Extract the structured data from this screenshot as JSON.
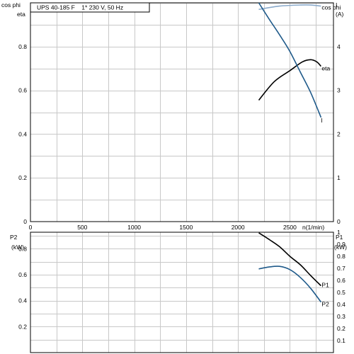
{
  "chart_data": [
    {
      "type": "line",
      "title": "UPS 40-185 F    1* 230 V, 50 Hz",
      "xlabel": "n(1/min)",
      "ylabel_left": [
        "cos phi",
        "eta"
      ],
      "ylabel_right": [
        "I",
        "(A)"
      ],
      "xlim": [
        0,
        2920
      ],
      "ylim_left": [
        0,
        1.0
      ],
      "ylim_right": [
        0,
        5.0
      ],
      "x_ticks": [
        "0",
        "500",
        "1000",
        "1500",
        "2000",
        "2500"
      ],
      "y_ticks_left": [
        "0",
        "0.2",
        "0.4",
        "0.6",
        "0.8"
      ],
      "y_ticks_right": [
        "0",
        "1",
        "2",
        "3",
        "4"
      ],
      "grid": true,
      "series": [
        {
          "name": "cos phi",
          "axis": "left",
          "color": "#8aaacb",
          "x": [
            2200,
            2400,
            2600,
            2700,
            2800
          ],
          "y": [
            0.97,
            0.985,
            0.99,
            0.99,
            0.985
          ]
        },
        {
          "name": "eta",
          "axis": "left",
          "color": "#000000",
          "x": [
            2200,
            2350,
            2500,
            2620,
            2700,
            2760,
            2800
          ],
          "y": [
            0.555,
            0.64,
            0.69,
            0.73,
            0.74,
            0.73,
            0.71
          ]
        },
        {
          "name": "I",
          "axis": "right",
          "color": "#1f5a8a",
          "x": [
            2200,
            2300,
            2400,
            2500,
            2600,
            2700,
            2800
          ],
          "y": [
            5.0,
            4.63,
            4.27,
            3.89,
            3.42,
            2.95,
            2.38
          ]
        }
      ]
    },
    {
      "type": "line",
      "ylabel_left": [
        "P2",
        "(kW)"
      ],
      "ylabel_right": [
        "P1",
        "(kW)"
      ],
      "xlim": [
        0,
        2920
      ],
      "ylim_left": [
        0,
        0.928
      ],
      "ylim_right": [
        0,
        1.0
      ],
      "y_ticks_left": [
        "0.2",
        "0.4",
        "0.6",
        "0.8"
      ],
      "y_ticks_right": [
        "0.1",
        "0.2",
        "0.3",
        "0.4",
        "0.5",
        "0.6",
        "0.7",
        "0.8",
        "0.9",
        "1"
      ],
      "grid": true,
      "series": [
        {
          "name": "P1",
          "axis": "right",
          "color": "#000000",
          "x": [
            2200,
            2300,
            2400,
            2500,
            2600,
            2700,
            2800
          ],
          "y": [
            0.995,
            0.94,
            0.88,
            0.8,
            0.73,
            0.64,
            0.555
          ]
        },
        {
          "name": "P2",
          "axis": "left",
          "color": "#1f5a8a",
          "x": [
            2200,
            2300,
            2400,
            2500,
            2600,
            2700,
            2800
          ],
          "y": [
            0.645,
            0.66,
            0.665,
            0.64,
            0.58,
            0.495,
            0.39
          ]
        }
      ]
    }
  ]
}
